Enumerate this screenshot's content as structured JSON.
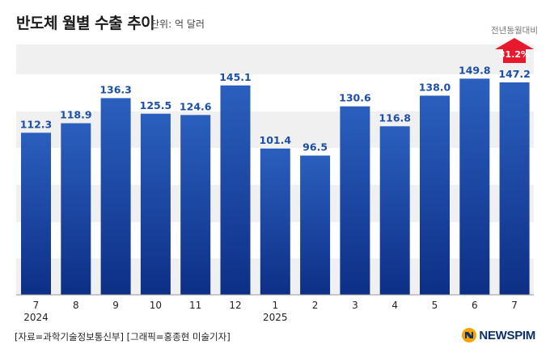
{
  "title": "반도체 월별 수출 추이",
  "unit": "단위: 억 달러",
  "yoy": {
    "label": "전년동월대비",
    "value": "31.2%",
    "color": "#e8192c"
  },
  "source": "[자료=과학기술정보통신부] [그래픽=홍종현 미술기자]",
  "logo": "NEWSPIM",
  "colors": {
    "bar_top": "#2b5fbe",
    "bar_bottom": "#0d2f86",
    "value_label": "#1b4fa8",
    "band": "#f0f0f0"
  },
  "chart_data": {
    "type": "bar",
    "title": "반도체 월별 수출 추이",
    "unit": "억 달러",
    "categories": [
      "7",
      "8",
      "9",
      "10",
      "11",
      "12",
      "1",
      "2",
      "3",
      "4",
      "5",
      "6",
      "7"
    ],
    "year_labels": {
      "0": "2024",
      "6": "2025"
    },
    "values": [
      112.3,
      118.9,
      136.3,
      125.5,
      124.6,
      145.1,
      101.4,
      96.5,
      130.6,
      116.8,
      138.0,
      149.8,
      147.2
    ],
    "value_labels": [
      "112.3",
      "118.9",
      "136.3",
      "125.5",
      "124.6",
      "145.1",
      "101.4",
      "96.5",
      "130.6",
      "116.8",
      "138.0",
      "149.8",
      "147.2"
    ],
    "ylim": [
      0,
      150
    ],
    "grid": false,
    "legend": "none",
    "annotation": {
      "text": "31.2%",
      "label": "전년동월대비",
      "category_index": 12
    }
  }
}
